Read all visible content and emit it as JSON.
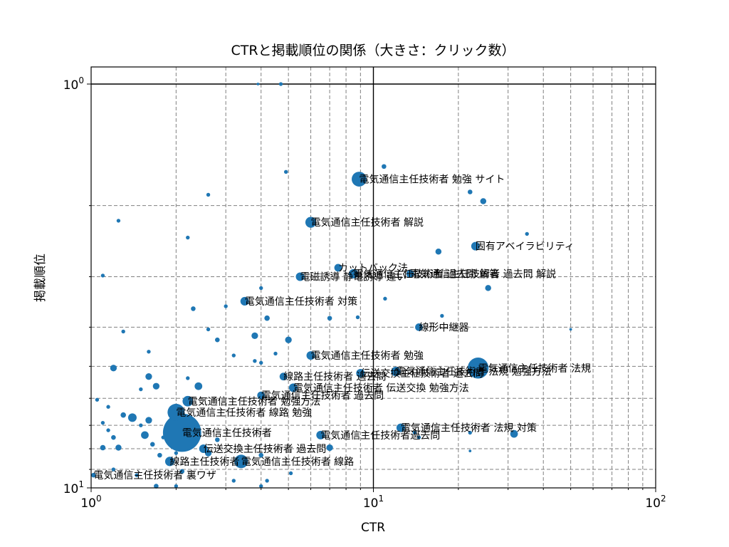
{
  "chart_data": {
    "type": "scatter",
    "title": "CTRと掲載順位の関係（大きさ：クリック数）",
    "xlabel": "CTR",
    "ylabel": "掲載順位",
    "x_scale": "log",
    "y_scale": "log",
    "y_inverted": true,
    "xlim": [
      1,
      100
    ],
    "ylim": [
      1,
      10
    ],
    "grid": true,
    "grid_style": "dashed",
    "reference_lines": {
      "x": 10,
      "y": 1
    },
    "marker_color": "#1f77b4",
    "x_ticks": [
      {
        "base": "10",
        "exp": "0",
        "value": 1
      },
      {
        "base": "10",
        "exp": "1",
        "value": 10
      },
      {
        "base": "10",
        "exp": "2",
        "value": 100
      }
    ],
    "y_ticks": [
      {
        "base": "10",
        "exp": "0",
        "value": 1
      },
      {
        "base": "10",
        "exp": "1",
        "value": 10
      }
    ],
    "labeled_points": [
      {
        "label": "電気通信主任技術者 勉強 サイト",
        "x": 8.9,
        "y": 1.72,
        "clicks": 30
      },
      {
        "label": "電気通信主任技術者 解説",
        "x": 6.0,
        "y": 2.2,
        "clicks": 16
      },
      {
        "label": "固有アベイラビリティ",
        "x": 23.0,
        "y": 2.52,
        "clicks": 10
      },
      {
        "label": "カットバック法",
        "x": 7.5,
        "y": 2.85,
        "clicks": 8
      },
      {
        "label": "電気通信主任技術者 過去問 解説",
        "x": 13.5,
        "y": 2.95,
        "clicks": 8
      },
      {
        "label": "電気通信主任技術者 過去問 解答",
        "x": 8.5,
        "y": 2.95,
        "clicks": 12
      },
      {
        "label": "電磁誘導 静電誘導 違い",
        "x": 5.5,
        "y": 3.0,
        "clicks": 10
      },
      {
        "label": "電気通信主任技術者 対策",
        "x": 3.5,
        "y": 3.45,
        "clicks": 10
      },
      {
        "label": "線形中継器",
        "x": 14.5,
        "y": 4.0,
        "clicks": 8
      },
      {
        "label": "電気通信主任技術者 勉強",
        "x": 6.0,
        "y": 4.7,
        "clicks": 10
      },
      {
        "label": "電気通信主任技術者 法規",
        "x": 23.5,
        "y": 5.05,
        "clicks": 60
      },
      {
        "label": "電気通信主任技術者 法規 勉強方法",
        "x": 12.0,
        "y": 5.15,
        "clicks": 12
      },
      {
        "label": "伝送交換主任技術者 過去問",
        "x": 9.0,
        "y": 5.2,
        "clicks": 10
      },
      {
        "label": "線路主任技術者 過去問",
        "x": 4.8,
        "y": 5.3,
        "clicks": 8
      },
      {
        "label": "電気通信主任技術者 伝送交換 勉強方法",
        "x": 5.2,
        "y": 5.65,
        "clicks": 10
      },
      {
        "label": "電気通信主任技術者 過去問",
        "x": 4.0,
        "y": 5.9,
        "clicks": 8
      },
      {
        "label": "電気通信主任技術者 勉強方法",
        "x": 2.2,
        "y": 6.1,
        "clicks": 15
      },
      {
        "label": "電気通信主任技術者 線路 勉強",
        "x": 2.0,
        "y": 6.5,
        "clicks": 40
      },
      {
        "label": "電気通信主任技術者",
        "x": 2.1,
        "y": 7.3,
        "clicks": 200
      },
      {
        "label": "電気通信主任技術者 法規 対策",
        "x": 12.5,
        "y": 7.1,
        "clicks": 10
      },
      {
        "label": "電気通信主任技術者過去問",
        "x": 6.5,
        "y": 7.4,
        "clicks": 10
      },
      {
        "label": "伝送交換主任技術者 過去問",
        "x": 2.5,
        "y": 8.0,
        "clicks": 10
      },
      {
        "label": "線路主任技術者",
        "x": 1.9,
        "y": 8.6,
        "clicks": 12
      },
      {
        "label": "電気通信主任技術者 線路",
        "x": 3.4,
        "y": 8.6,
        "clicks": 25
      },
      {
        "label": "電気通信主任技術者 裏ワザ",
        "x": 1.02,
        "y": 9.3,
        "clicks": 3
      }
    ],
    "other_points": [
      {
        "x": 4.7,
        "y": 1.0,
        "clicks": 2
      },
      {
        "x": 3.9,
        "y": 1.0,
        "clicks": 1
      },
      {
        "x": 10.9,
        "y": 1.6,
        "clicks": 3
      },
      {
        "x": 4.9,
        "y": 1.65,
        "clicks": 2
      },
      {
        "x": 22.0,
        "y": 1.85,
        "clicks": 3
      },
      {
        "x": 24.5,
        "y": 1.95,
        "clicks": 5
      },
      {
        "x": 2.6,
        "y": 1.88,
        "clicks": 2
      },
      {
        "x": 1.25,
        "y": 2.18,
        "clicks": 2
      },
      {
        "x": 35.0,
        "y": 2.35,
        "clicks": 2
      },
      {
        "x": 2.2,
        "y": 2.4,
        "clicks": 2
      },
      {
        "x": 17.0,
        "y": 2.6,
        "clicks": 5
      },
      {
        "x": 1.1,
        "y": 2.98,
        "clicks": 2
      },
      {
        "x": 25.5,
        "y": 3.2,
        "clicks": 5
      },
      {
        "x": 4.0,
        "y": 3.2,
        "clicks": 2
      },
      {
        "x": 11.0,
        "y": 3.4,
        "clicks": 2
      },
      {
        "x": 3.0,
        "y": 3.55,
        "clicks": 2
      },
      {
        "x": 2.3,
        "y": 3.6,
        "clicks": 3
      },
      {
        "x": 4.2,
        "y": 3.8,
        "clicks": 4
      },
      {
        "x": 7.0,
        "y": 3.8,
        "clicks": 3
      },
      {
        "x": 8.8,
        "y": 3.78,
        "clicks": 2
      },
      {
        "x": 17.5,
        "y": 3.75,
        "clicks": 2
      },
      {
        "x": 1.3,
        "y": 4.1,
        "clicks": 2
      },
      {
        "x": 2.6,
        "y": 4.05,
        "clicks": 2
      },
      {
        "x": 3.8,
        "y": 4.2,
        "clicks": 6
      },
      {
        "x": 5.0,
        "y": 4.3,
        "clicks": 6
      },
      {
        "x": 2.8,
        "y": 4.3,
        "clicks": 3
      },
      {
        "x": 1.6,
        "y": 4.6,
        "clicks": 2
      },
      {
        "x": 4.5,
        "y": 4.65,
        "clicks": 2
      },
      {
        "x": 50.0,
        "y": 4.05,
        "clicks": 1
      },
      {
        "x": 3.2,
        "y": 4.7,
        "clicks": 2
      },
      {
        "x": 4.0,
        "y": 4.9,
        "clicks": 2
      },
      {
        "x": 1.2,
        "y": 5.05,
        "clicks": 6
      },
      {
        "x": 2.2,
        "y": 5.35,
        "clicks": 2
      },
      {
        "x": 1.6,
        "y": 5.3,
        "clicks": 6
      },
      {
        "x": 1.7,
        "y": 5.6,
        "clicks": 6
      },
      {
        "x": 2.4,
        "y": 5.6,
        "clicks": 8
      },
      {
        "x": 1.05,
        "y": 6.05,
        "clicks": 2
      },
      {
        "x": 1.5,
        "y": 5.7,
        "clicks": 2
      },
      {
        "x": 1.15,
        "y": 6.3,
        "clicks": 2
      },
      {
        "x": 1.4,
        "y": 6.7,
        "clicks": 10
      },
      {
        "x": 1.6,
        "y": 6.8,
        "clicks": 6
      },
      {
        "x": 1.3,
        "y": 6.6,
        "clicks": 4
      },
      {
        "x": 1.1,
        "y": 6.9,
        "clicks": 2
      },
      {
        "x": 1.5,
        "y": 7.0,
        "clicks": 2
      },
      {
        "x": 1.55,
        "y": 7.4,
        "clicks": 8
      },
      {
        "x": 1.15,
        "y": 7.2,
        "clicks": 2
      },
      {
        "x": 1.2,
        "y": 7.5,
        "clicks": 3
      },
      {
        "x": 1.8,
        "y": 7.5,
        "clicks": 2
      },
      {
        "x": 14.0,
        "y": 7.3,
        "clicks": 2
      },
      {
        "x": 14.5,
        "y": 7.5,
        "clicks": 2
      },
      {
        "x": 22.0,
        "y": 7.3,
        "clicks": 2
      },
      {
        "x": 31.5,
        "y": 7.35,
        "clicks": 8
      },
      {
        "x": 1.1,
        "y": 7.95,
        "clicks": 4
      },
      {
        "x": 1.25,
        "y": 7.95,
        "clicks": 5
      },
      {
        "x": 1.65,
        "y": 7.8,
        "clicks": 3
      },
      {
        "x": 2.8,
        "y": 7.6,
        "clicks": 3
      },
      {
        "x": 7.0,
        "y": 7.95,
        "clicks": 6
      },
      {
        "x": 2.6,
        "y": 8.2,
        "clicks": 6
      },
      {
        "x": 4.0,
        "y": 8.3,
        "clicks": 3
      },
      {
        "x": 1.75,
        "y": 8.3,
        "clicks": 3
      },
      {
        "x": 22.0,
        "y": 8.1,
        "clicks": 1
      },
      {
        "x": 2.0,
        "y": 8.2,
        "clicks": 2
      },
      {
        "x": 1.2,
        "y": 9.0,
        "clicks": 2
      },
      {
        "x": 2.1,
        "y": 9.1,
        "clicks": 3
      },
      {
        "x": 5.1,
        "y": 9.2,
        "clicks": 2
      },
      {
        "x": 3.2,
        "y": 9.6,
        "clicks": 2
      },
      {
        "x": 1.7,
        "y": 9.9,
        "clicks": 3
      },
      {
        "x": 2.0,
        "y": 9.9,
        "clicks": 2
      },
      {
        "x": 4.0,
        "y": 9.9,
        "clicks": 2
      },
      {
        "x": 4.2,
        "y": 9.6,
        "clicks": 2
      },
      {
        "x": 1.45,
        "y": 9.3,
        "clicks": 2
      },
      {
        "x": 3.8,
        "y": 4.85,
        "clicks": 2
      }
    ]
  }
}
